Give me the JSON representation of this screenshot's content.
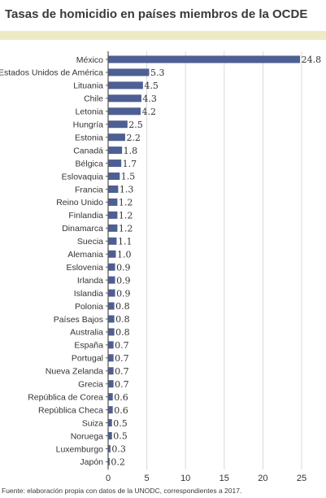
{
  "chart_data": {
    "type": "bar",
    "orientation": "horizontal",
    "title": "Tasas de homicidio en países miembros de la OCDE",
    "source": "Fuente: elaboración propia con datos de la UNODC, correspondientes a 2017.",
    "categories": [
      "México",
      "Estados Unidos de América",
      "Lituania",
      "Chile",
      "Letonia",
      "Hungría",
      "Estonia",
      "Canadá",
      "Bélgica",
      "Eslovaquia",
      "Francia",
      "Reino Unido",
      "Finlandia",
      "Dinamarca",
      "Suecia",
      "Alemania",
      "Eslovenia",
      "Irlanda",
      "Islandia",
      "Polonia",
      "Países Bajos",
      "Australia",
      "España",
      "Portugal",
      "Nueva Zelanda",
      "Grecia",
      "República de Corea",
      "República Checa",
      "Suiza",
      "Noruega",
      "Luxemburgo",
      "Japón"
    ],
    "values": [
      24.8,
      5.3,
      4.5,
      4.3,
      4.2,
      2.5,
      2.2,
      1.8,
      1.7,
      1.5,
      1.3,
      1.2,
      1.2,
      1.2,
      1.1,
      1.0,
      0.9,
      0.9,
      0.9,
      0.8,
      0.8,
      0.8,
      0.7,
      0.7,
      0.7,
      0.7,
      0.6,
      0.6,
      0.5,
      0.5,
      0.3,
      0.2
    ],
    "value_labels": [
      "24.8",
      "5.3",
      "4.5",
      "4.3",
      "4.2",
      "2.5",
      "2.2",
      "1.8",
      "1.7",
      "1.5",
      "1.3",
      "1.2",
      "1.2",
      "1.2",
      "1.1",
      "1.0",
      "0.9",
      "0.9",
      "0.9",
      "0.8",
      "0.8",
      "0.8",
      "0.7",
      "0.7",
      "0.7",
      "0.7",
      "0.6",
      "0.6",
      "0.5",
      "0.5",
      "0.3",
      "0.2"
    ],
    "xlim": [
      0,
      25
    ],
    "xticks": [
      0,
      5,
      10,
      15,
      20,
      25
    ],
    "grid": true,
    "xlabel": "",
    "ylabel": "",
    "colors": {
      "bar": "#4e5f93",
      "grid": "#d9d9d9",
      "axis": "#555555",
      "title_band": "#ecebc6"
    }
  }
}
